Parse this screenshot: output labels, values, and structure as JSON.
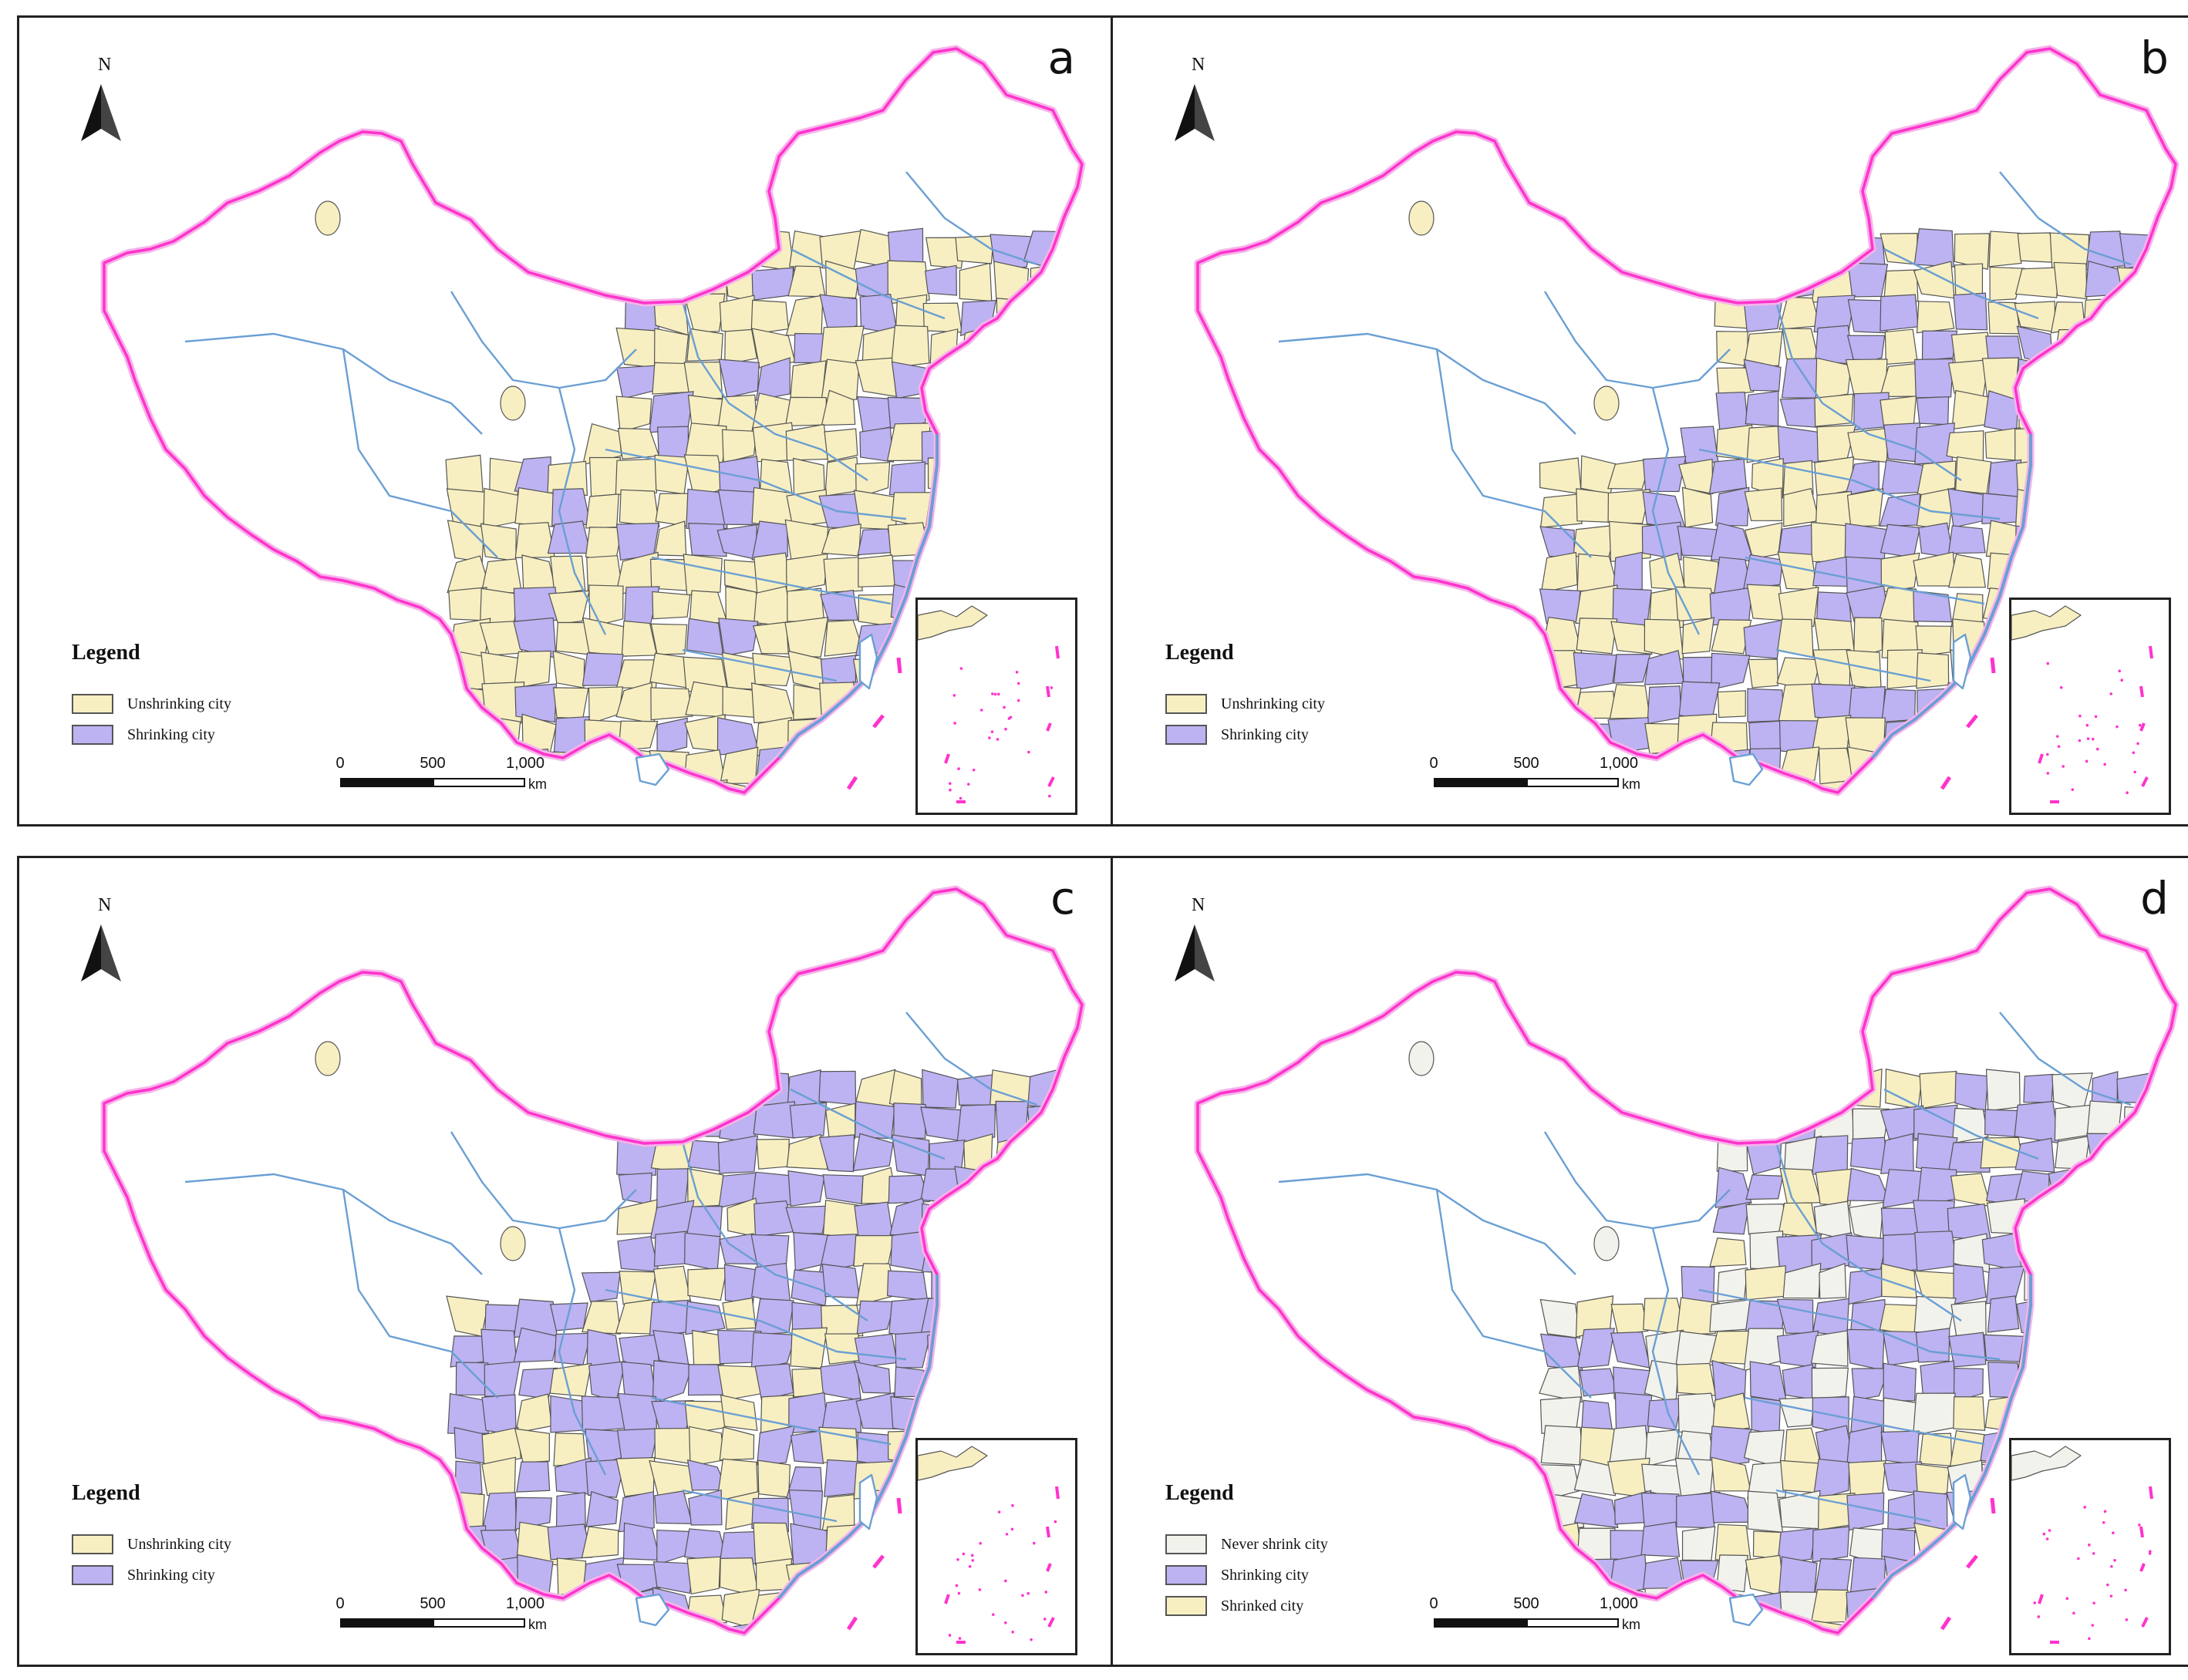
{
  "colors": {
    "unshrinking": "#f7efc1",
    "shrinking": "#bdb2f2",
    "never_shrink": "#f2f2ec",
    "shrinked": "#f7efc1",
    "border": "#ff33cc",
    "province": "#6a9fd4",
    "city": "#555555"
  },
  "north_label": "N",
  "scale": {
    "ticks": [
      "0",
      "500",
      "1,000"
    ],
    "unit": "km"
  },
  "legend_title": "Legend",
  "panels": [
    {
      "letter": "a",
      "legend": [
        {
          "label": "Unshrinking city",
          "color": "#f7efc1"
        },
        {
          "label": "Shrinking city",
          "color": "#bdb2f2"
        }
      ]
    },
    {
      "letter": "b",
      "legend": [
        {
          "label": "Unshrinking city",
          "color": "#f7efc1"
        },
        {
          "label": "Shrinking city",
          "color": "#bdb2f2"
        }
      ]
    },
    {
      "letter": "c",
      "legend": [
        {
          "label": "Unshrinking city",
          "color": "#f7efc1"
        },
        {
          "label": "Shrinking city",
          "color": "#bdb2f2"
        }
      ]
    },
    {
      "letter": "d",
      "legend": [
        {
          "label": "Never shrink city",
          "color": "#f2f2ec"
        },
        {
          "label": "Shrinking city",
          "color": "#bdb2f2"
        },
        {
          "label": "Shrinked city",
          "color": "#f7efc1"
        }
      ]
    }
  ]
}
